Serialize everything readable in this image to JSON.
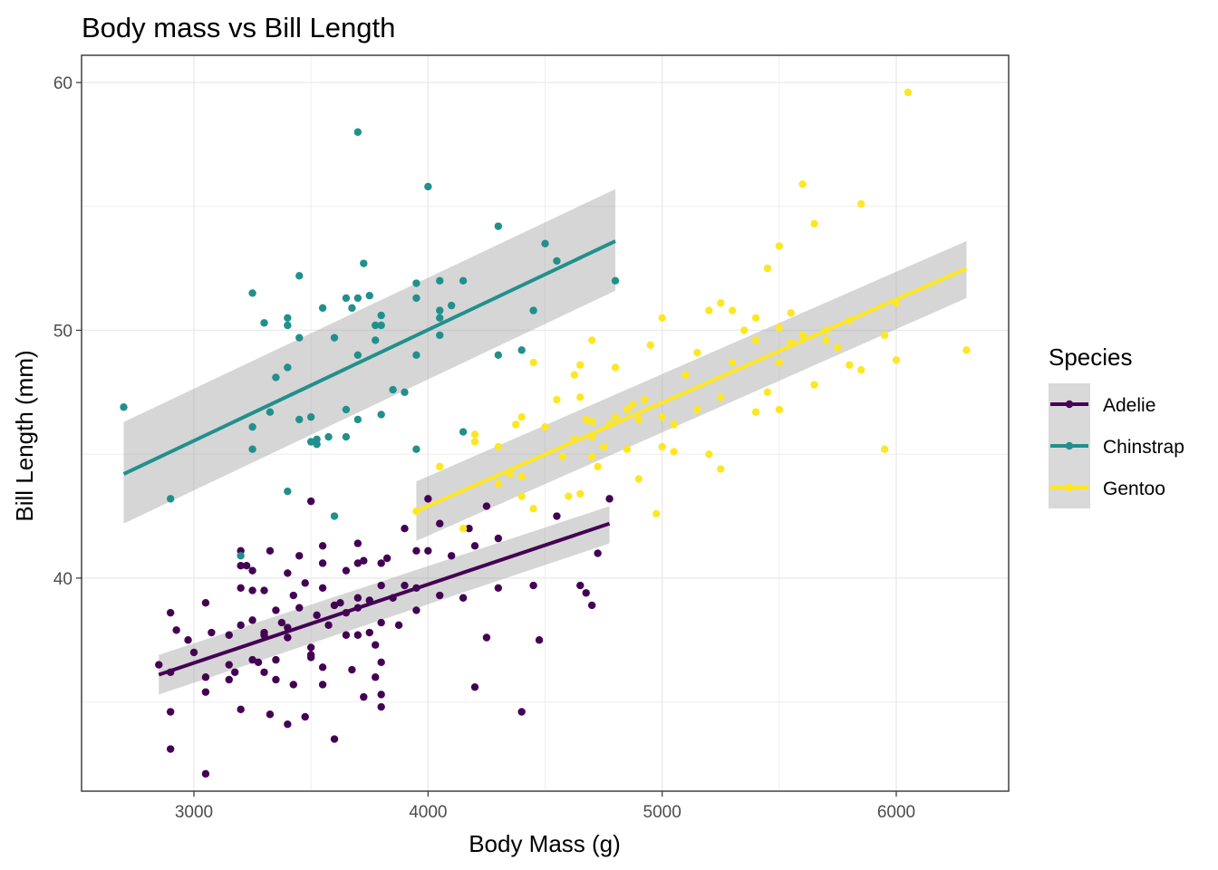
{
  "chart_data": {
    "type": "scatter",
    "title": "Body mass vs Bill Length",
    "xlabel": "Body Mass (g)",
    "ylabel": "Bill Length (mm)",
    "xlim": [
      2520,
      6480
    ],
    "ylim": [
      31.4,
      61.1
    ],
    "x_ticks": [
      3000,
      4000,
      5000,
      6000
    ],
    "y_ticks": [
      40,
      50,
      60
    ],
    "grid": true,
    "legend": {
      "title": "Species",
      "placement": "right"
    },
    "series": [
      {
        "name": "Adelie",
        "color": "#440154",
        "points": [
          [
            2850,
            36.5
          ],
          [
            2900,
            36.2
          ],
          [
            2900,
            38.6
          ],
          [
            2900,
            34.6
          ],
          [
            2900,
            33.1
          ],
          [
            2925,
            37.9
          ],
          [
            2975,
            37.5
          ],
          [
            3000,
            37.0
          ],
          [
            3050,
            35.4
          ],
          [
            3050,
            36.0
          ],
          [
            3050,
            39.0
          ],
          [
            3050,
            32.1
          ],
          [
            3075,
            37.8
          ],
          [
            3150,
            37.7
          ],
          [
            3150,
            35.9
          ],
          [
            3150,
            36.5
          ],
          [
            3175,
            36.2
          ],
          [
            3200,
            38.1
          ],
          [
            3200,
            40.5
          ],
          [
            3200,
            39.6
          ],
          [
            3200,
            41.1
          ],
          [
            3200,
            34.7
          ],
          [
            3225,
            40.5
          ],
          [
            3250,
            40.3
          ],
          [
            3250,
            39.5
          ],
          [
            3250,
            38.3
          ],
          [
            3250,
            36.7
          ],
          [
            3275,
            36.6
          ],
          [
            3300,
            39.5
          ],
          [
            3300,
            37.8
          ],
          [
            3300,
            37.7
          ],
          [
            3300,
            36.2
          ],
          [
            3325,
            34.5
          ],
          [
            3325,
            41.1
          ],
          [
            3350,
            38.7
          ],
          [
            3350,
            35.9
          ],
          [
            3350,
            36.7
          ],
          [
            3375,
            38.2
          ],
          [
            3400,
            37.6
          ],
          [
            3400,
            34.1
          ],
          [
            3400,
            40.2
          ],
          [
            3400,
            38.0
          ],
          [
            3425,
            39.3
          ],
          [
            3425,
            35.7
          ],
          [
            3450,
            40.9
          ],
          [
            3450,
            38.8
          ],
          [
            3475,
            34.4
          ],
          [
            3475,
            39.8
          ],
          [
            3500,
            36.8
          ],
          [
            3500,
            36.9
          ],
          [
            3500,
            43.1
          ],
          [
            3500,
            37.2
          ],
          [
            3525,
            38.5
          ],
          [
            3550,
            40.6
          ],
          [
            3550,
            41.3
          ],
          [
            3550,
            36.4
          ],
          [
            3550,
            35.7
          ],
          [
            3550,
            39.6
          ],
          [
            3575,
            38.1
          ],
          [
            3600,
            38.9
          ],
          [
            3600,
            33.5
          ],
          [
            3600,
            38.9
          ],
          [
            3625,
            39.0
          ],
          [
            3650,
            40.3
          ],
          [
            3650,
            37.7
          ],
          [
            3650,
            38.6
          ],
          [
            3675,
            36.3
          ],
          [
            3700,
            39.2
          ],
          [
            3700,
            41.4
          ],
          [
            3700,
            40.6
          ],
          [
            3700,
            38.8
          ],
          [
            3700,
            37.7
          ],
          [
            3725,
            40.7
          ],
          [
            3725,
            35.2
          ],
          [
            3750,
            39.1
          ],
          [
            3750,
            37.8
          ],
          [
            3775,
            37.3
          ],
          [
            3775,
            36.0
          ],
          [
            3800,
            40.6
          ],
          [
            3800,
            39.7
          ],
          [
            3800,
            35.3
          ],
          [
            3800,
            38.2
          ],
          [
            3800,
            36.6
          ],
          [
            3800,
            34.8
          ],
          [
            3825,
            40.8
          ],
          [
            3850,
            39.2
          ],
          [
            3875,
            38.1
          ],
          [
            3900,
            42.0
          ],
          [
            3900,
            39.7
          ],
          [
            3950,
            41.1
          ],
          [
            3950,
            39.6
          ],
          [
            3950,
            38.7
          ],
          [
            4000,
            41.1
          ],
          [
            4000,
            43.2
          ],
          [
            4050,
            42.2
          ],
          [
            4050,
            39.3
          ],
          [
            4100,
            40.9
          ],
          [
            4150,
            39.2
          ],
          [
            4175,
            42.0
          ],
          [
            4200,
            41.3
          ],
          [
            4200,
            35.6
          ],
          [
            4250,
            42.9
          ],
          [
            4250,
            37.6
          ],
          [
            4300,
            41.6
          ],
          [
            4300,
            39.6
          ],
          [
            4400,
            34.6
          ],
          [
            4450,
            39.7
          ],
          [
            4475,
            37.5
          ],
          [
            4550,
            42.5
          ],
          [
            4650,
            39.7
          ],
          [
            4675,
            39.4
          ],
          [
            4700,
            38.9
          ],
          [
            4725,
            41.0
          ],
          [
            4775,
            43.2
          ]
        ]
      },
      {
        "name": "Chinstrap",
        "color": "#21908c",
        "points": [
          [
            2700,
            46.9
          ],
          [
            2900,
            43.2
          ],
          [
            3200,
            40.9
          ],
          [
            3250,
            51.5
          ],
          [
            3250,
            45.2
          ],
          [
            3250,
            46.1
          ],
          [
            3300,
            50.3
          ],
          [
            3325,
            46.7
          ],
          [
            3350,
            48.1
          ],
          [
            3400,
            43.5
          ],
          [
            3400,
            50.2
          ],
          [
            3400,
            48.5
          ],
          [
            3400,
            50.5
          ],
          [
            3450,
            52.2
          ],
          [
            3450,
            46.4
          ],
          [
            3450,
            49.7
          ],
          [
            3500,
            46.5
          ],
          [
            3500,
            45.5
          ],
          [
            3525,
            45.6
          ],
          [
            3525,
            45.4
          ],
          [
            3550,
            50.9
          ],
          [
            3575,
            45.7
          ],
          [
            3600,
            42.5
          ],
          [
            3600,
            49.7
          ],
          [
            3650,
            46.8
          ],
          [
            3650,
            51.3
          ],
          [
            3650,
            45.7
          ],
          [
            3675,
            50.9
          ],
          [
            3700,
            51.3
          ],
          [
            3700,
            49.0
          ],
          [
            3700,
            46.4
          ],
          [
            3700,
            58.0
          ],
          [
            3725,
            52.7
          ],
          [
            3750,
            51.4
          ],
          [
            3775,
            50.2
          ],
          [
            3775,
            49.6
          ],
          [
            3800,
            50.6
          ],
          [
            3800,
            50.2
          ],
          [
            3800,
            46.6
          ],
          [
            3850,
            47.6
          ],
          [
            3900,
            47.5
          ],
          [
            3950,
            45.2
          ],
          [
            3950,
            51.9
          ],
          [
            3950,
            49.0
          ],
          [
            3950,
            51.3
          ],
          [
            4000,
            55.8
          ],
          [
            4050,
            49.8
          ],
          [
            4050,
            50.8
          ],
          [
            4050,
            50.5
          ],
          [
            4050,
            52.0
          ],
          [
            4100,
            51.0
          ],
          [
            4150,
            45.9
          ],
          [
            4150,
            52.0
          ],
          [
            4300,
            54.2
          ],
          [
            4300,
            49.0
          ],
          [
            4400,
            49.2
          ],
          [
            4450,
            50.8
          ],
          [
            4500,
            53.5
          ],
          [
            4550,
            52.8
          ],
          [
            4800,
            52.0
          ]
        ]
      },
      {
        "name": "Gentoo",
        "color": "#fde725",
        "points": [
          [
            3950,
            42.7
          ],
          [
            4050,
            44.5
          ],
          [
            4150,
            42.0
          ],
          [
            4200,
            45.8
          ],
          [
            4200,
            45.5
          ],
          [
            4300,
            43.8
          ],
          [
            4300,
            45.3
          ],
          [
            4350,
            44.2
          ],
          [
            4375,
            46.2
          ],
          [
            4400,
            46.5
          ],
          [
            4400,
            43.3
          ],
          [
            4400,
            44.1
          ],
          [
            4450,
            48.7
          ],
          [
            4450,
            42.8
          ],
          [
            4500,
            46.1
          ],
          [
            4550,
            47.2
          ],
          [
            4575,
            44.9
          ],
          [
            4600,
            43.3
          ],
          [
            4625,
            48.2
          ],
          [
            4625,
            45.6
          ],
          [
            4650,
            48.6
          ],
          [
            4650,
            47.3
          ],
          [
            4650,
            43.4
          ],
          [
            4675,
            46.4
          ],
          [
            4700,
            49.6
          ],
          [
            4700,
            46.3
          ],
          [
            4700,
            44.9
          ],
          [
            4700,
            45.7
          ],
          [
            4725,
            44.5
          ],
          [
            4750,
            45.3
          ],
          [
            4775,
            46.2
          ],
          [
            4800,
            48.5
          ],
          [
            4800,
            46.5
          ],
          [
            4850,
            46.8
          ],
          [
            4850,
            45.2
          ],
          [
            4875,
            47.0
          ],
          [
            4900,
            46.4
          ],
          [
            4900,
            44.0
          ],
          [
            4925,
            47.2
          ],
          [
            4950,
            49.4
          ],
          [
            4975,
            42.6
          ],
          [
            5000,
            50.5
          ],
          [
            5000,
            46.5
          ],
          [
            5000,
            45.3
          ],
          [
            5050,
            45.1
          ],
          [
            5050,
            46.2
          ],
          [
            5100,
            48.2
          ],
          [
            5150,
            49.1
          ],
          [
            5150,
            46.8
          ],
          [
            5200,
            45.0
          ],
          [
            5200,
            50.8
          ],
          [
            5250,
            44.4
          ],
          [
            5250,
            47.3
          ],
          [
            5250,
            51.1
          ],
          [
            5300,
            50.8
          ],
          [
            5300,
            48.7
          ],
          [
            5350,
            50.0
          ],
          [
            5400,
            49.6
          ],
          [
            5400,
            46.7
          ],
          [
            5400,
            50.5
          ],
          [
            5450,
            52.5
          ],
          [
            5450,
            47.5
          ],
          [
            5500,
            53.4
          ],
          [
            5500,
            48.7
          ],
          [
            5500,
            46.8
          ],
          [
            5500,
            50.1
          ],
          [
            5550,
            49.5
          ],
          [
            5550,
            50.7
          ],
          [
            5600,
            55.9
          ],
          [
            5600,
            49.8
          ],
          [
            5650,
            54.3
          ],
          [
            5650,
            47.8
          ],
          [
            5700,
            50.0
          ],
          [
            5700,
            49.6
          ],
          [
            5750,
            49.3
          ],
          [
            5800,
            50.4
          ],
          [
            5800,
            48.6
          ],
          [
            5850,
            55.1
          ],
          [
            5850,
            48.4
          ],
          [
            5950,
            49.8
          ],
          [
            5950,
            45.2
          ],
          [
            6000,
            51.1
          ],
          [
            6000,
            48.8
          ],
          [
            6050,
            59.6
          ],
          [
            6300,
            49.2
          ]
        ]
      }
    ],
    "fit_lines": [
      {
        "series": "Adelie",
        "x": [
          2850,
          4775
        ],
        "y": [
          36.1,
          42.2
        ],
        "se_upper": [
          36.9,
          42.9
        ],
        "se_lower": [
          35.3,
          41.4
        ]
      },
      {
        "series": "Chinstrap",
        "x": [
          2700,
          4800
        ],
        "y": [
          44.2,
          53.6
        ],
        "se_upper": [
          46.3,
          55.7
        ],
        "se_lower": [
          42.2,
          51.6
        ]
      },
      {
        "series": "Gentoo",
        "x": [
          3950,
          6300
        ],
        "y": [
          42.7,
          52.5
        ],
        "se_upper": [
          43.9,
          53.6
        ],
        "se_lower": [
          41.5,
          51.3
        ]
      }
    ]
  }
}
